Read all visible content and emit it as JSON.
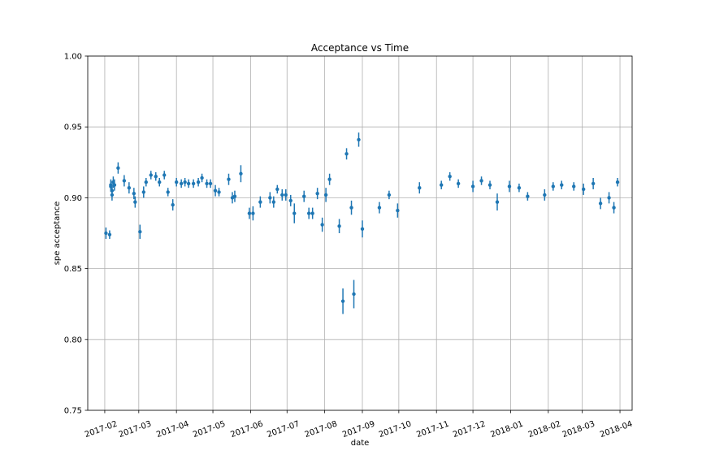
{
  "chart_data": {
    "type": "scatter",
    "title": "Acceptance vs Time",
    "xlabel": "date",
    "ylabel": "spe acceptance",
    "x_axis_type": "date",
    "xlim": [
      "2017-01-18",
      "2018-04-11"
    ],
    "ylim": [
      0.75,
      1.0
    ],
    "x_ticks": [
      "2017-02-01",
      "2017-03-01",
      "2017-04-01",
      "2017-05-01",
      "2017-06-01",
      "2017-07-01",
      "2017-08-01",
      "2017-09-01",
      "2017-10-01",
      "2017-11-01",
      "2017-12-01",
      "2018-01-01",
      "2018-02-01",
      "2018-03-01",
      "2018-04-01"
    ],
    "x_tick_labels": [
      "2017-02",
      "2017-03",
      "2017-04",
      "2017-05",
      "2017-06",
      "2017-07",
      "2017-08",
      "2017-09",
      "2017-10",
      "2017-11",
      "2017-12",
      "2018-01",
      "2018-02",
      "2018-03",
      "2018-04"
    ],
    "y_ticks": [
      0.75,
      0.8,
      0.85,
      0.9,
      0.95,
      1.0
    ],
    "y_tick_labels": [
      "0.75",
      "0.80",
      "0.85",
      "0.90",
      "0.95",
      "1.00"
    ],
    "grid": true,
    "marker_color": "#1f77b4",
    "series": [
      {
        "x": [
          "2017-02-02",
          "2017-02-05",
          "2017-02-06",
          "2017-02-06",
          "2017-02-07",
          "2017-02-07",
          "2017-02-08",
          "2017-02-09",
          "2017-02-12",
          "2017-02-17",
          "2017-02-21",
          "2017-02-25",
          "2017-02-26",
          "2017-03-02",
          "2017-03-05",
          "2017-03-07",
          "2017-03-11",
          "2017-03-15",
          "2017-03-18",
          "2017-03-22",
          "2017-03-25",
          "2017-03-29",
          "2017-04-01",
          "2017-04-05",
          "2017-04-08",
          "2017-04-11",
          "2017-04-15",
          "2017-04-19",
          "2017-04-22",
          "2017-04-26",
          "2017-04-29",
          "2017-05-03",
          "2017-05-06",
          "2017-05-14",
          "2017-05-17",
          "2017-05-19",
          "2017-05-24",
          "2017-05-31",
          "2017-06-03",
          "2017-06-09",
          "2017-06-17",
          "2017-06-20",
          "2017-06-23",
          "2017-06-27",
          "2017-06-30",
          "2017-07-04",
          "2017-07-07",
          "2017-07-15",
          "2017-07-19",
          "2017-07-22",
          "2017-07-26",
          "2017-07-30",
          "2017-08-02",
          "2017-08-05",
          "2017-08-13",
          "2017-08-16",
          "2017-08-19",
          "2017-08-23",
          "2017-08-25",
          "2017-08-29",
          "2017-09-01",
          "2017-09-15",
          "2017-09-23",
          "2017-09-30",
          "2017-10-18",
          "2017-11-05",
          "2017-11-12",
          "2017-11-19",
          "2017-12-01",
          "2017-12-08",
          "2017-12-15",
          "2017-12-21",
          "2017-12-31",
          "2018-01-08",
          "2018-01-15",
          "2018-01-29",
          "2018-02-05",
          "2018-02-12",
          "2018-02-22",
          "2018-03-02",
          "2018-03-10",
          "2018-03-16",
          "2018-03-23",
          "2018-03-27",
          "2018-03-30"
        ],
        "y": [
          0.875,
          0.874,
          0.909,
          0.908,
          0.902,
          0.905,
          0.911,
          0.909,
          0.921,
          0.912,
          0.907,
          0.903,
          0.897,
          0.876,
          0.904,
          0.911,
          0.916,
          0.915,
          0.911,
          0.916,
          0.904,
          0.895,
          0.911,
          0.91,
          0.911,
          0.91,
          0.91,
          0.911,
          0.914,
          0.91,
          0.91,
          0.905,
          0.904,
          0.913,
          0.9,
          0.901,
          0.917,
          0.889,
          0.889,
          0.897,
          0.9,
          0.897,
          0.906,
          0.902,
          0.902,
          0.898,
          0.889,
          0.901,
          0.889,
          0.889,
          0.903,
          0.881,
          0.902,
          0.913,
          0.88,
          0.827,
          0.931,
          0.893,
          0.832,
          0.941,
          0.878,
          0.893,
          0.902,
          0.891,
          0.907,
          0.909,
          0.915,
          0.91,
          0.908,
          0.912,
          0.909,
          0.897,
          0.908,
          0.907,
          0.901,
          0.902,
          0.908,
          0.909,
          0.908,
          0.906,
          0.91,
          0.896,
          0.9,
          0.893,
          0.911
        ],
        "yerr": [
          0.004,
          0.003,
          0.004,
          0.004,
          0.004,
          0.004,
          0.004,
          0.004,
          0.004,
          0.004,
          0.004,
          0.004,
          0.004,
          0.005,
          0.004,
          0.003,
          0.003,
          0.003,
          0.003,
          0.003,
          0.003,
          0.004,
          0.003,
          0.003,
          0.003,
          0.003,
          0.003,
          0.003,
          0.003,
          0.003,
          0.003,
          0.004,
          0.003,
          0.004,
          0.004,
          0.004,
          0.006,
          0.004,
          0.005,
          0.004,
          0.004,
          0.004,
          0.003,
          0.004,
          0.004,
          0.004,
          0.007,
          0.004,
          0.004,
          0.004,
          0.004,
          0.005,
          0.005,
          0.004,
          0.005,
          0.009,
          0.004,
          0.005,
          0.01,
          0.005,
          0.006,
          0.004,
          0.003,
          0.005,
          0.004,
          0.003,
          0.003,
          0.003,
          0.004,
          0.003,
          0.003,
          0.006,
          0.004,
          0.003,
          0.003,
          0.004,
          0.003,
          0.003,
          0.003,
          0.004,
          0.004,
          0.004,
          0.004,
          0.004,
          0.003
        ]
      }
    ]
  }
}
